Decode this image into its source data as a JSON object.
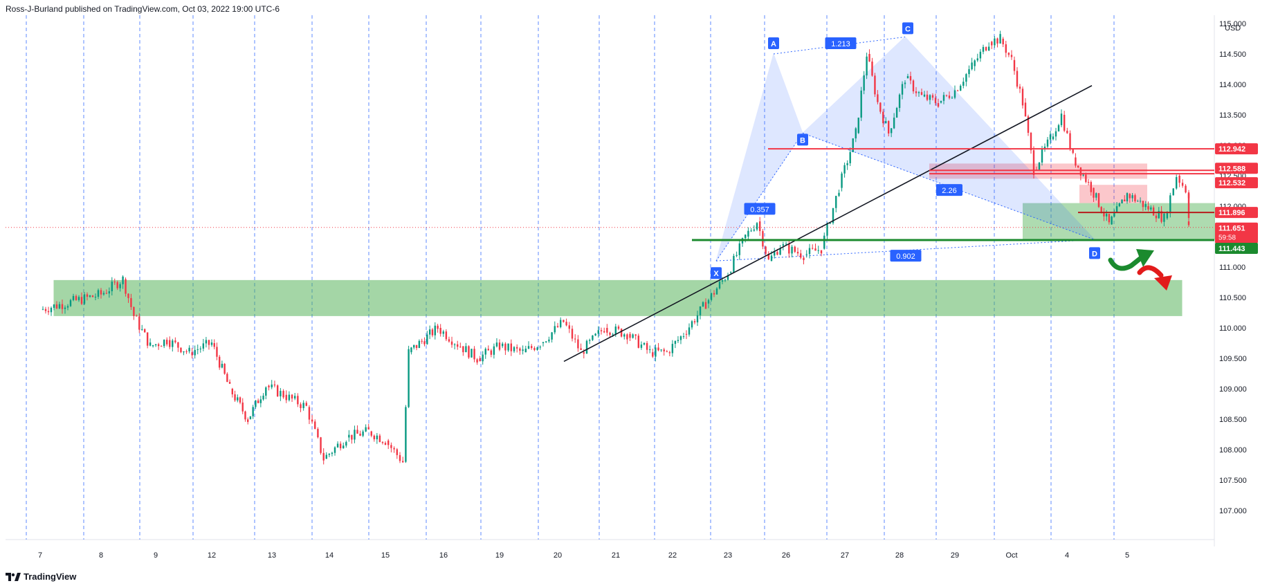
{
  "header": {
    "publisher": "Ross-J-Burland published on TradingView.com, Oct 03, 2022 19:00 UTC-6"
  },
  "footer": {
    "brand": "TradingView",
    "logo_icon": "tradingview-logo-icon"
  },
  "chart_data": {
    "type": "candlestick",
    "instrument_currency": "USD",
    "ylim": [
      106.8,
      115.35
    ],
    "y_ticks": [
      "115.000",
      "114.500",
      "114.000",
      "113.500",
      "113.000",
      "112.500",
      "112.000",
      "111.500",
      "111.000",
      "110.500",
      "110.000",
      "109.500",
      "109.000",
      "108.500",
      "108.000",
      "107.500",
      "107.000"
    ],
    "x_ticks": [
      "7",
      "8",
      "9",
      "12",
      "13",
      "14",
      "15",
      "16",
      "19",
      "20",
      "21",
      "22",
      "23",
      "26",
      "27",
      "28",
      "29",
      "Oct",
      "4",
      "5"
    ],
    "grid": "session separators (dashed blue vertical lines)",
    "price_path": [
      [
        0,
        110.3
      ],
      [
        1,
        110.55
      ],
      [
        1.4,
        110.8
      ],
      [
        1.6,
        110.2
      ],
      [
        1.9,
        109.7
      ],
      [
        2.2,
        109.8
      ],
      [
        2.6,
        109.6
      ],
      [
        3.0,
        109.75
      ],
      [
        3.3,
        109.0
      ],
      [
        3.6,
        108.5
      ],
      [
        3.9,
        109.05
      ],
      [
        4.2,
        108.9
      ],
      [
        4.6,
        108.7
      ],
      [
        4.9,
        107.85
      ],
      [
        5.3,
        108.2
      ],
      [
        5.7,
        108.3
      ],
      [
        6.0,
        108.15
      ],
      [
        6.3,
        107.8
      ],
      [
        6.4,
        109.6
      ],
      [
        6.9,
        110.0
      ],
      [
        7.3,
        109.7
      ],
      [
        7.6,
        109.5
      ],
      [
        8.0,
        109.7
      ],
      [
        8.4,
        109.6
      ],
      [
        8.7,
        109.75
      ],
      [
        9.1,
        110.1
      ],
      [
        9.4,
        109.6
      ],
      [
        9.8,
        110.0
      ],
      [
        10.2,
        109.9
      ],
      [
        10.6,
        109.6
      ],
      [
        10.9,
        109.6
      ],
      [
        11.2,
        109.9
      ],
      [
        11.6,
        110.4
      ],
      [
        12.0,
        110.9
      ],
      [
        12.3,
        111.5
      ],
      [
        12.5,
        111.75
      ],
      [
        12.7,
        111.1
      ],
      [
        12.9,
        111.35
      ],
      [
        13.3,
        111.2
      ],
      [
        13.6,
        111.3
      ],
      [
        13.9,
        112.3
      ],
      [
        14.2,
        113.2
      ],
      [
        14.4,
        114.5
      ],
      [
        14.6,
        113.7
      ],
      [
        14.8,
        113.2
      ],
      [
        15.1,
        114.1
      ],
      [
        15.4,
        113.8
      ],
      [
        15.7,
        113.7
      ],
      [
        16.0,
        113.9
      ],
      [
        16.3,
        114.3
      ],
      [
        16.6,
        114.7
      ],
      [
        16.8,
        114.75
      ],
      [
        17.0,
        114.4
      ],
      [
        17.2,
        113.7
      ],
      [
        17.4,
        112.6
      ],
      [
        17.7,
        113.1
      ],
      [
        17.9,
        113.5
      ],
      [
        18.1,
        112.8
      ],
      [
        18.4,
        112.3
      ],
      [
        18.7,
        111.7
      ],
      [
        19.0,
        112.2
      ],
      [
        19.3,
        112.0
      ],
      [
        19.6,
        111.8
      ],
      [
        19.8,
        112.5
      ],
      [
        20.1,
        112.2
      ],
      [
        20.3,
        111.9
      ],
      [
        20.6,
        111.75
      ],
      [
        20.8,
        111.7
      ]
    ],
    "price_path_x_axis": "session index (0 = session '7' on the x axis, 1 per session tick)",
    "pattern": {
      "name": "harmonic XABCD",
      "points": [
        {
          "label": "X",
          "price": 111.1
        },
        {
          "label": "A",
          "price": 114.5
        },
        {
          "label": "B",
          "price": 113.2
        },
        {
          "label": "C",
          "price": 114.78
        },
        {
          "label": "D",
          "price": 111.45
        }
      ],
      "ratios": [
        "0.357",
        "1.213",
        "2.26",
        "0.902"
      ]
    },
    "zones": [
      {
        "name": "support zone",
        "ymin": 110.2,
        "ymax": 110.78,
        "color": "#4caf50"
      },
      {
        "name": "resistance box",
        "ymin": 112.45,
        "ymax": 112.7,
        "color": "#f23645"
      },
      {
        "name": "resistance box 2",
        "ymin": 112.05,
        "ymax": 112.35,
        "color": "#f23645"
      },
      {
        "name": "demand box",
        "ymin": 111.45,
        "ymax": 112.05,
        "color": "#4caf50"
      }
    ],
    "levels": [
      {
        "price": 112.942,
        "label": "112.942",
        "color": "#f23645"
      },
      {
        "price": 112.588,
        "label": "112.588",
        "color": "#f23645"
      },
      {
        "price": 112.532,
        "label": "112.532",
        "color": "#f23645"
      },
      {
        "price": 111.896,
        "label": "111.896",
        "color": "#f23645"
      },
      {
        "price": 111.443,
        "label": "111.443",
        "color": "#1b8a2e"
      }
    ],
    "last_price": {
      "label": "111.651",
      "countdown": "59:58",
      "color": "#f23645"
    },
    "trendline": {
      "from": 109.45,
      "to": 113.98
    },
    "colors": {
      "up": "#089981",
      "down": "#f23645",
      "pattern": "#2962ff",
      "grid": "#2962ff"
    }
  }
}
